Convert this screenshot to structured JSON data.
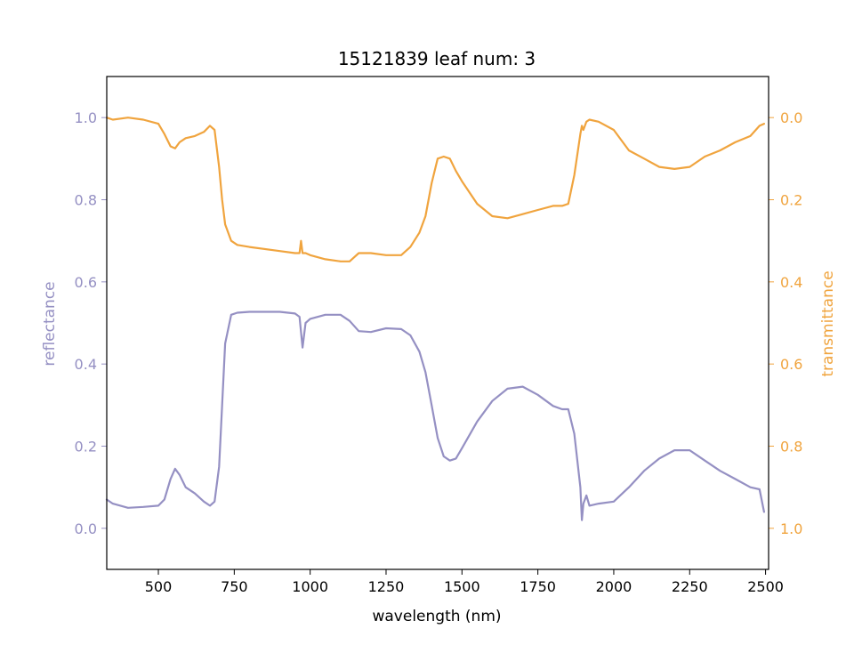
{
  "chart_data": {
    "type": "line",
    "title": "15121839 leaf num: 3",
    "xlabel": "wavelength (nm)",
    "ylabel_left": "reflectance",
    "ylabel_right": "transmittance",
    "xlim": [
      330,
      2510
    ],
    "ylim_left": [
      -0.1,
      1.1
    ],
    "ylim_right": [
      1.1,
      -0.1
    ],
    "right_axis_inverted": true,
    "x_ticks": [
      500,
      750,
      1000,
      1250,
      1500,
      1750,
      2000,
      2250,
      2500
    ],
    "y_ticks_left": [
      0.0,
      0.2,
      0.4,
      0.6,
      0.8,
      1.0
    ],
    "y_ticks_right": [
      0.0,
      0.2,
      0.4,
      0.6,
      0.8,
      1.0
    ],
    "grid": false,
    "colors": {
      "reflectance": "#9590c3",
      "transmittance": "#f0a43e",
      "axes": "#000000"
    },
    "series": [
      {
        "name": "reflectance",
        "axis": "left",
        "x": [
          330,
          350,
          400,
          450,
          500,
          520,
          540,
          555,
          570,
          590,
          620,
          650,
          670,
          685,
          700,
          710,
          720,
          740,
          760,
          800,
          900,
          950,
          965,
          975,
          985,
          1000,
          1050,
          1100,
          1130,
          1160,
          1200,
          1250,
          1300,
          1330,
          1360,
          1380,
          1400,
          1420,
          1440,
          1460,
          1480,
          1500,
          1550,
          1600,
          1650,
          1700,
          1750,
          1800,
          1830,
          1850,
          1870,
          1890,
          1895,
          1900,
          1910,
          1920,
          1950,
          2000,
          2050,
          2100,
          2150,
          2200,
          2250,
          2300,
          2350,
          2400,
          2450,
          2480,
          2495
        ],
        "y": [
          0.07,
          0.06,
          0.05,
          0.052,
          0.055,
          0.07,
          0.12,
          0.145,
          0.13,
          0.1,
          0.085,
          0.065,
          0.055,
          0.065,
          0.15,
          0.3,
          0.45,
          0.52,
          0.525,
          0.527,
          0.527,
          0.523,
          0.515,
          0.44,
          0.5,
          0.51,
          0.52,
          0.52,
          0.505,
          0.48,
          0.478,
          0.487,
          0.485,
          0.47,
          0.43,
          0.38,
          0.3,
          0.22,
          0.175,
          0.165,
          0.17,
          0.195,
          0.26,
          0.31,
          0.34,
          0.345,
          0.325,
          0.298,
          0.29,
          0.29,
          0.23,
          0.1,
          0.02,
          0.06,
          0.08,
          0.055,
          0.06,
          0.065,
          0.1,
          0.14,
          0.17,
          0.19,
          0.19,
          0.165,
          0.14,
          0.12,
          0.1,
          0.095,
          0.04
        ]
      },
      {
        "name": "transmittance",
        "axis": "right",
        "x": [
          330,
          350,
          400,
          450,
          500,
          520,
          540,
          555,
          570,
          590,
          620,
          650,
          670,
          685,
          700,
          710,
          720,
          740,
          760,
          800,
          900,
          950,
          965,
          970,
          975,
          985,
          1000,
          1050,
          1100,
          1130,
          1160,
          1200,
          1250,
          1300,
          1330,
          1360,
          1380,
          1400,
          1420,
          1440,
          1460,
          1480,
          1500,
          1550,
          1600,
          1650,
          1700,
          1750,
          1800,
          1830,
          1850,
          1870,
          1890,
          1895,
          1900,
          1910,
          1920,
          1950,
          2000,
          2050,
          2100,
          2150,
          2200,
          2250,
          2300,
          2350,
          2400,
          2450,
          2480,
          2495
        ],
        "y": [
          0.0,
          0.005,
          0.0,
          0.005,
          0.015,
          0.04,
          0.07,
          0.075,
          0.06,
          0.05,
          0.045,
          0.035,
          0.02,
          0.03,
          0.12,
          0.2,
          0.26,
          0.3,
          0.31,
          0.315,
          0.325,
          0.33,
          0.33,
          0.3,
          0.33,
          0.33,
          0.335,
          0.345,
          0.35,
          0.35,
          0.33,
          0.33,
          0.335,
          0.335,
          0.315,
          0.28,
          0.24,
          0.16,
          0.1,
          0.095,
          0.1,
          0.13,
          0.155,
          0.21,
          0.24,
          0.245,
          0.235,
          0.225,
          0.215,
          0.215,
          0.21,
          0.14,
          0.04,
          0.02,
          0.03,
          0.01,
          0.005,
          0.01,
          0.03,
          0.08,
          0.1,
          0.12,
          0.125,
          0.12,
          0.095,
          0.08,
          0.06,
          0.045,
          0.02,
          0.015
        ]
      }
    ]
  }
}
